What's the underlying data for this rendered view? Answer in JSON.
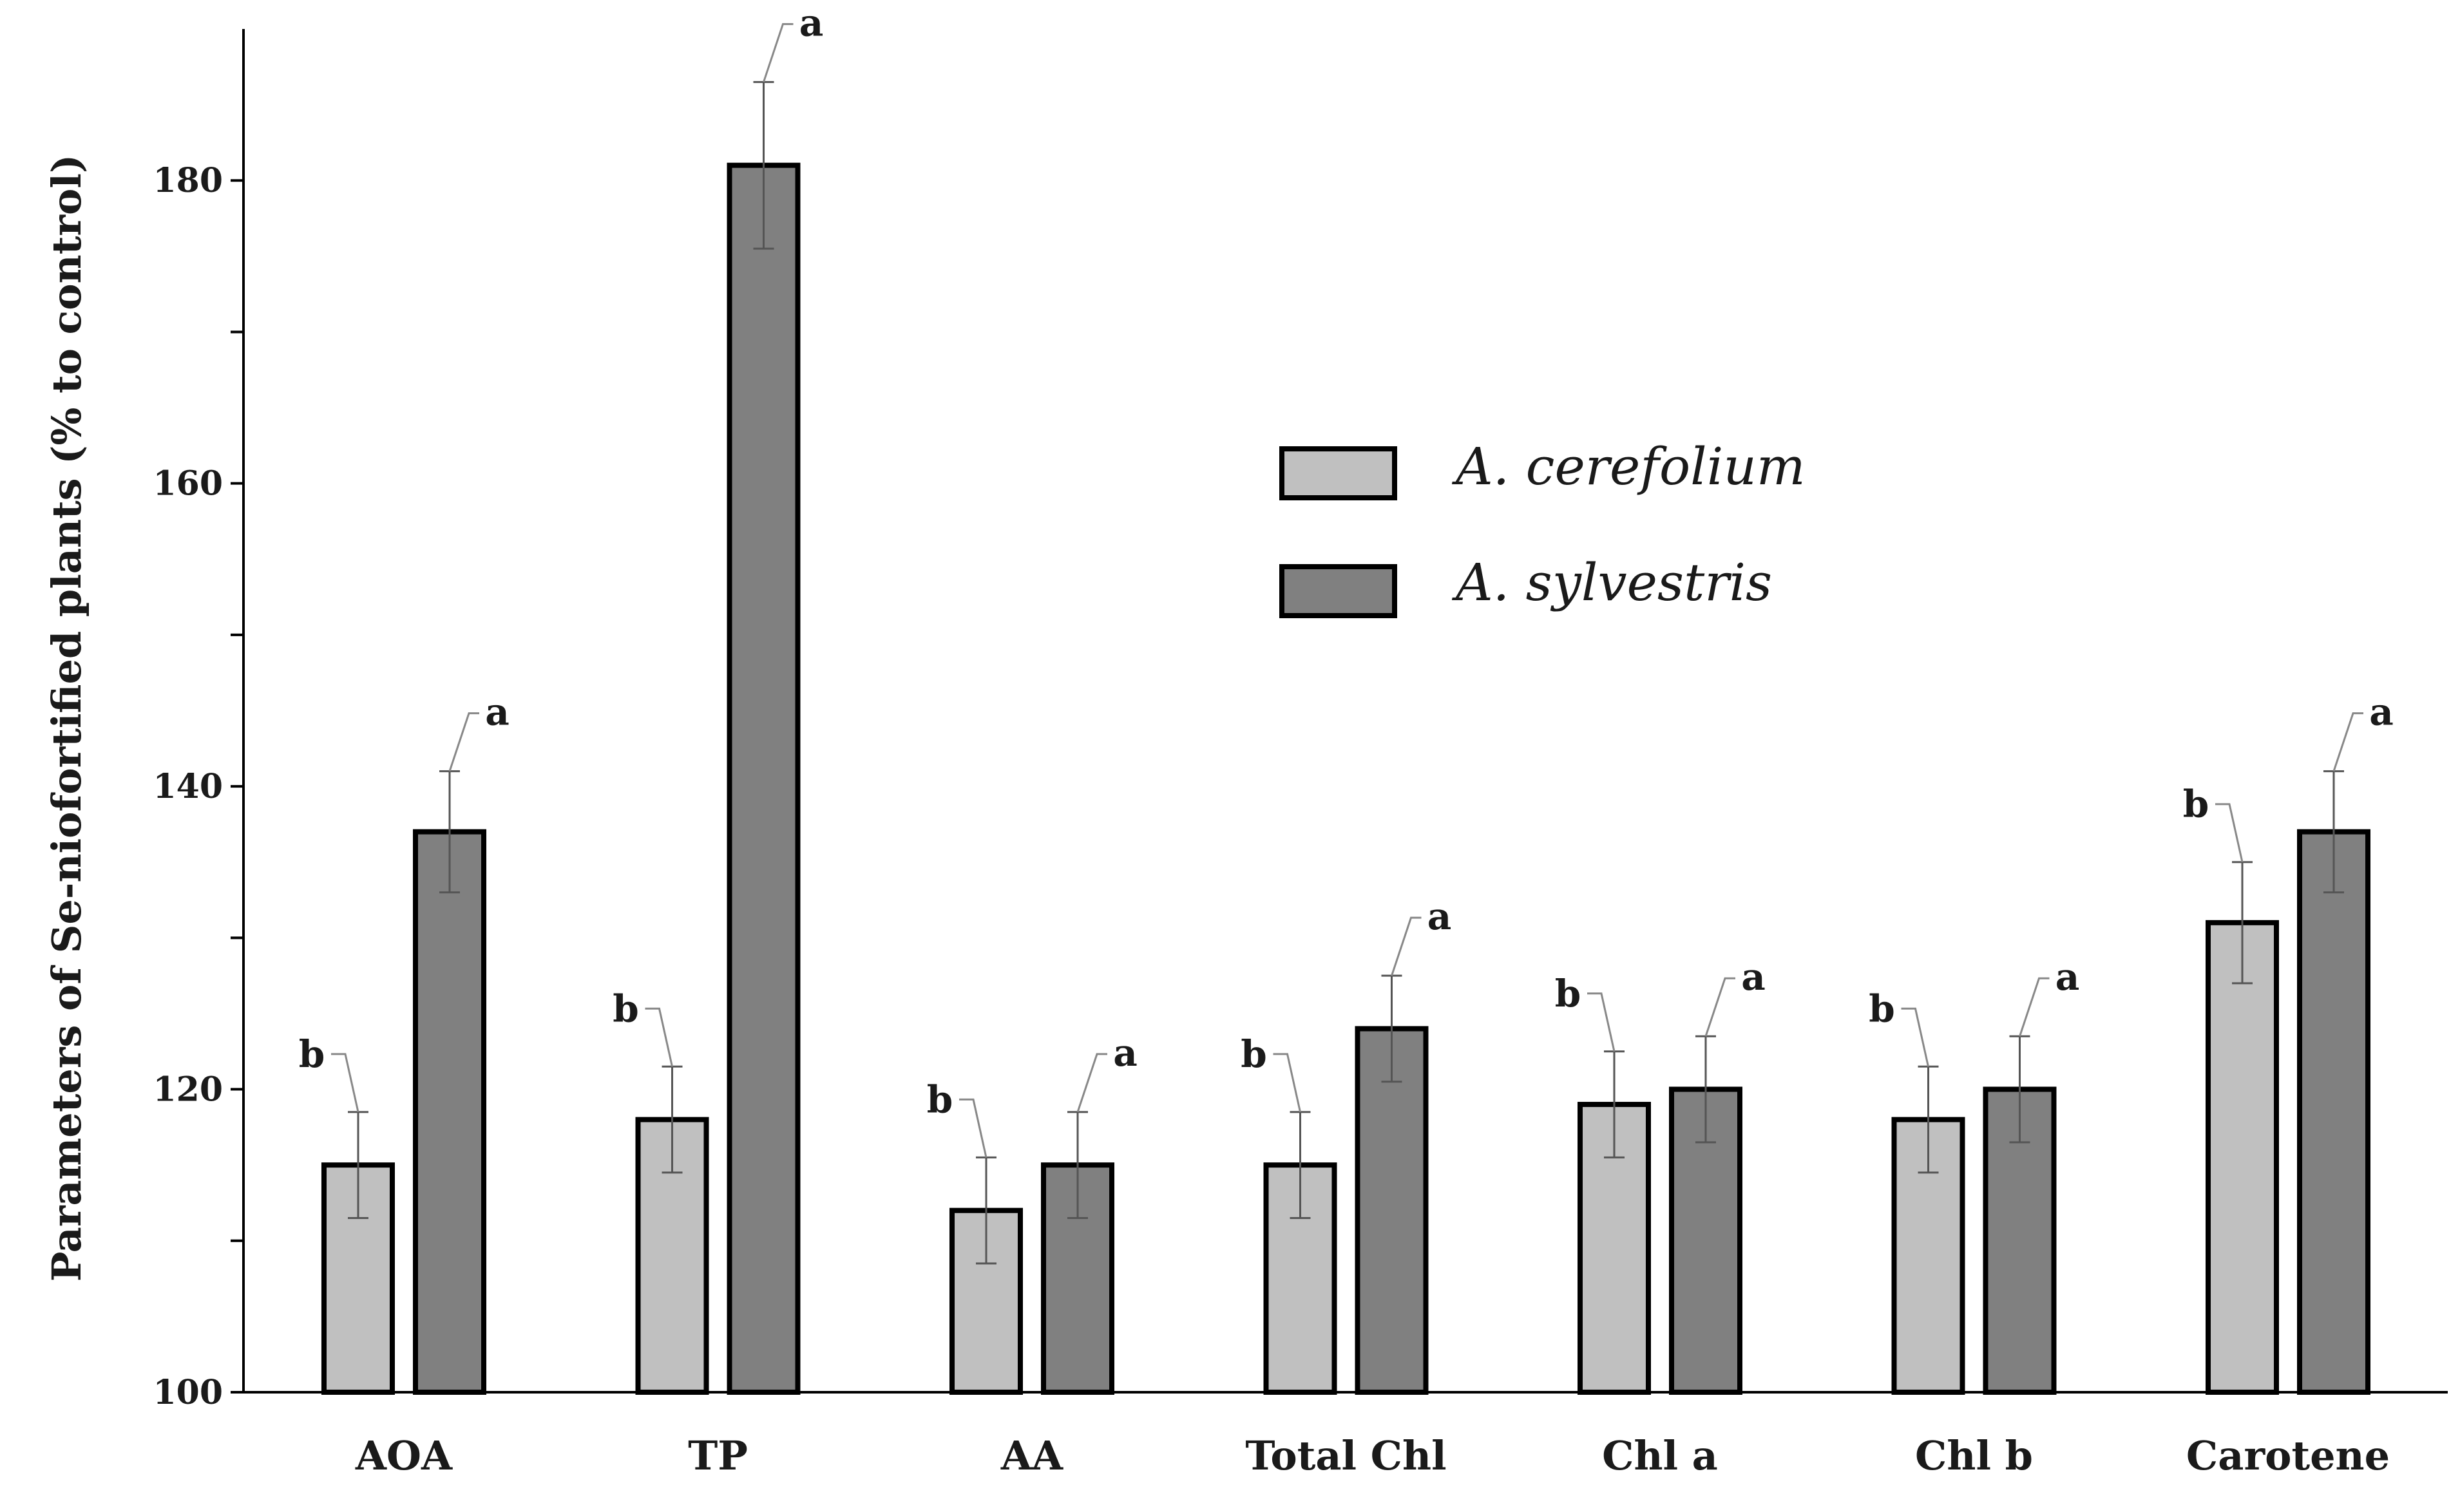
{
  "chart_data": {
    "type": "bar",
    "title": "",
    "xlabel": "",
    "ylabel": "Parameters of Se-niofortified plants (% to control)",
    "ylim": [
      100,
      190
    ],
    "yticks_labeled": [
      100,
      120,
      140,
      160,
      180
    ],
    "yticks_minor": [
      110,
      130,
      150,
      170
    ],
    "grid": false,
    "legend_position": "center",
    "categories": [
      "AOA",
      "TP",
      "AA",
      "Total Chl",
      "Chl a",
      "Chl b",
      "Carotene"
    ],
    "series": [
      {
        "name": "A. cerefolium",
        "color": "#c0c0c0",
        "values": [
          115,
          118,
          112,
          115,
          119,
          118,
          131
        ],
        "errors": [
          3.5,
          3.5,
          3.5,
          3.5,
          3.5,
          3.5,
          4
        ],
        "significance": [
          "b",
          "b",
          "b",
          "b",
          "b",
          "b",
          "b"
        ]
      },
      {
        "name": "A. sylvestris",
        "color": "#808080",
        "values": [
          137,
          181,
          115,
          124,
          120,
          120,
          137
        ],
        "errors": [
          4,
          5.5,
          3.5,
          3.5,
          3.5,
          3.5,
          4
        ],
        "significance": [
          "a",
          "a",
          "a",
          "a",
          "a",
          "a",
          "a"
        ]
      }
    ]
  }
}
